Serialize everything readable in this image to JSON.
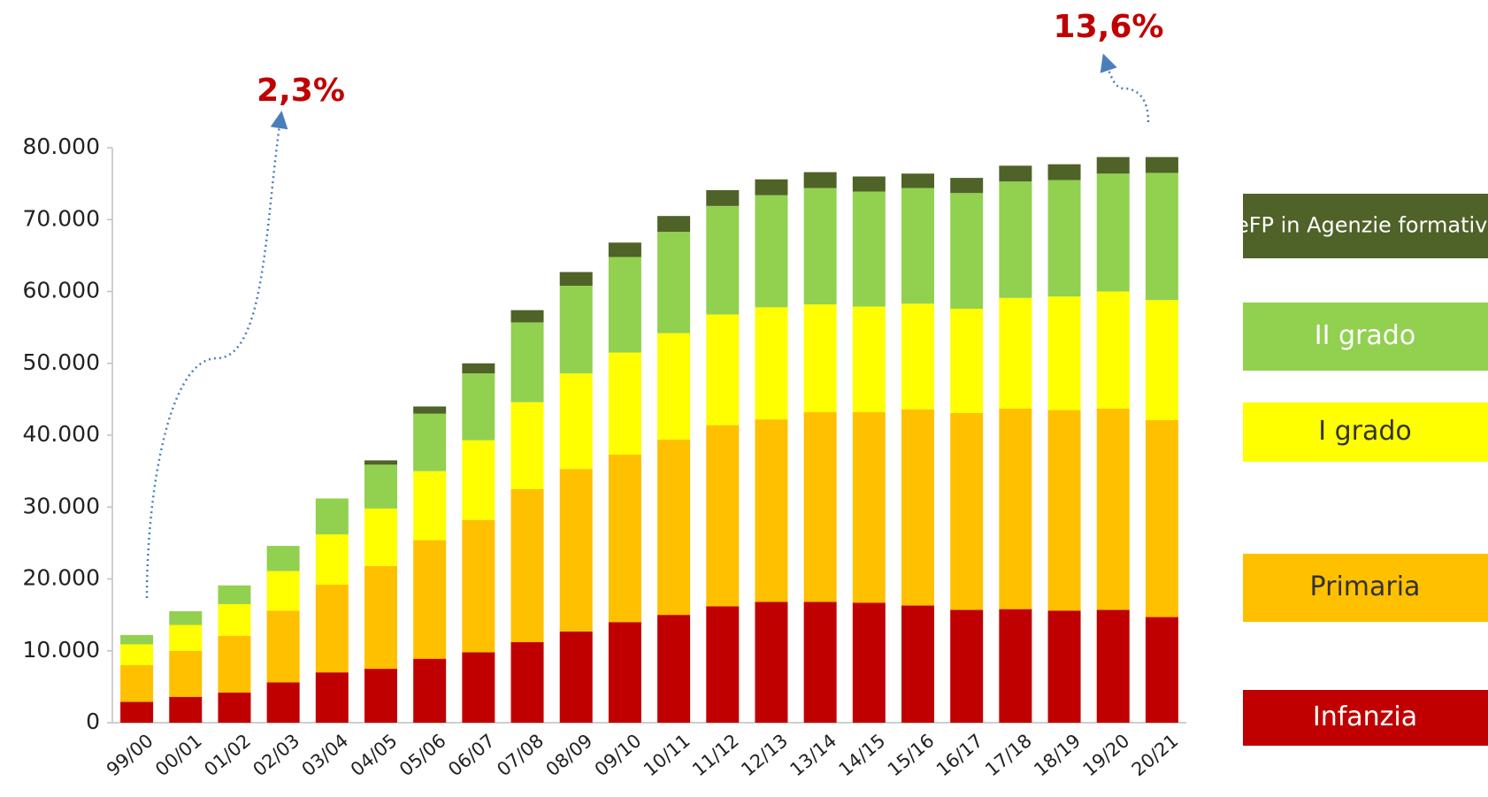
{
  "chart_data": {
    "type": "bar",
    "stacked": true,
    "categories": [
      "99/00",
      "00/01",
      "01/02",
      "02/03",
      "03/04",
      "04/05",
      "05/06",
      "06/07",
      "07/08",
      "08/09",
      "09/10",
      "10/11",
      "11/12",
      "12/13",
      "13/14",
      "14/15",
      "15/16",
      "16/17",
      "17/18",
      "18/19",
      "19/20",
      "20/21"
    ],
    "series": [
      {
        "name": "Infanzia",
        "color": "#c00000",
        "values": [
          2900,
          3600,
          4200,
          5600,
          7000,
          7500,
          8900,
          9800,
          11200,
          12700,
          14000,
          15000,
          16200,
          16800,
          16800,
          16700,
          16300,
          15700,
          15800,
          15600,
          15700,
          14700
        ]
      },
      {
        "name": "Primaria",
        "color": "#ffc000",
        "values": [
          5100,
          6400,
          7900,
          10000,
          12200,
          14300,
          16500,
          18400,
          21300,
          22600,
          23300,
          24400,
          25200,
          25400,
          26400,
          26500,
          27300,
          27400,
          27900,
          27900,
          28000,
          27400
        ]
      },
      {
        "name": "I grado",
        "color": "#ffff00",
        "values": [
          2900,
          3600,
          4400,
          5500,
          7000,
          8000,
          9600,
          11100,
          12100,
          13300,
          14200,
          14800,
          15400,
          15600,
          15000,
          14700,
          14700,
          14500,
          15400,
          15800,
          16300,
          16700
        ]
      },
      {
        "name": "II grado",
        "color": "#92d050",
        "values": [
          1300,
          1900,
          2600,
          3500,
          5000,
          6100,
          8000,
          9300,
          11100,
          12200,
          13300,
          14100,
          15100,
          15600,
          16200,
          16000,
          16100,
          16100,
          16200,
          16200,
          16400,
          17700
        ]
      },
      {
        "name": "IeFP in Agenzie formative",
        "color": "#4f6228",
        "values": [
          0,
          0,
          0,
          0,
          0,
          600,
          1000,
          1400,
          1700,
          1900,
          2000,
          2200,
          2200,
          2200,
          2200,
          2100,
          2000,
          2100,
          2200,
          2200,
          2300,
          2200
        ]
      }
    ],
    "ylim": [
      0,
      80000
    ],
    "yticks": [
      0,
      {
        "value": 10000,
        "label": "10.000"
      },
      {
        "value": 20000,
        "label": "20.000"
      },
      {
        "value": 30000,
        "label": "30.000"
      },
      {
        "value": 40000,
        "label": "40.000"
      },
      {
        "value": 50000,
        "label": "50.000"
      },
      {
        "value": 60000,
        "label": "60.000"
      },
      {
        "value": 70000,
        "label": "70.000"
      },
      {
        "value": 80000,
        "label": "80.000"
      }
    ],
    "annotations": [
      {
        "text": "2,3%"
      },
      {
        "text": "13,6%"
      }
    ]
  }
}
